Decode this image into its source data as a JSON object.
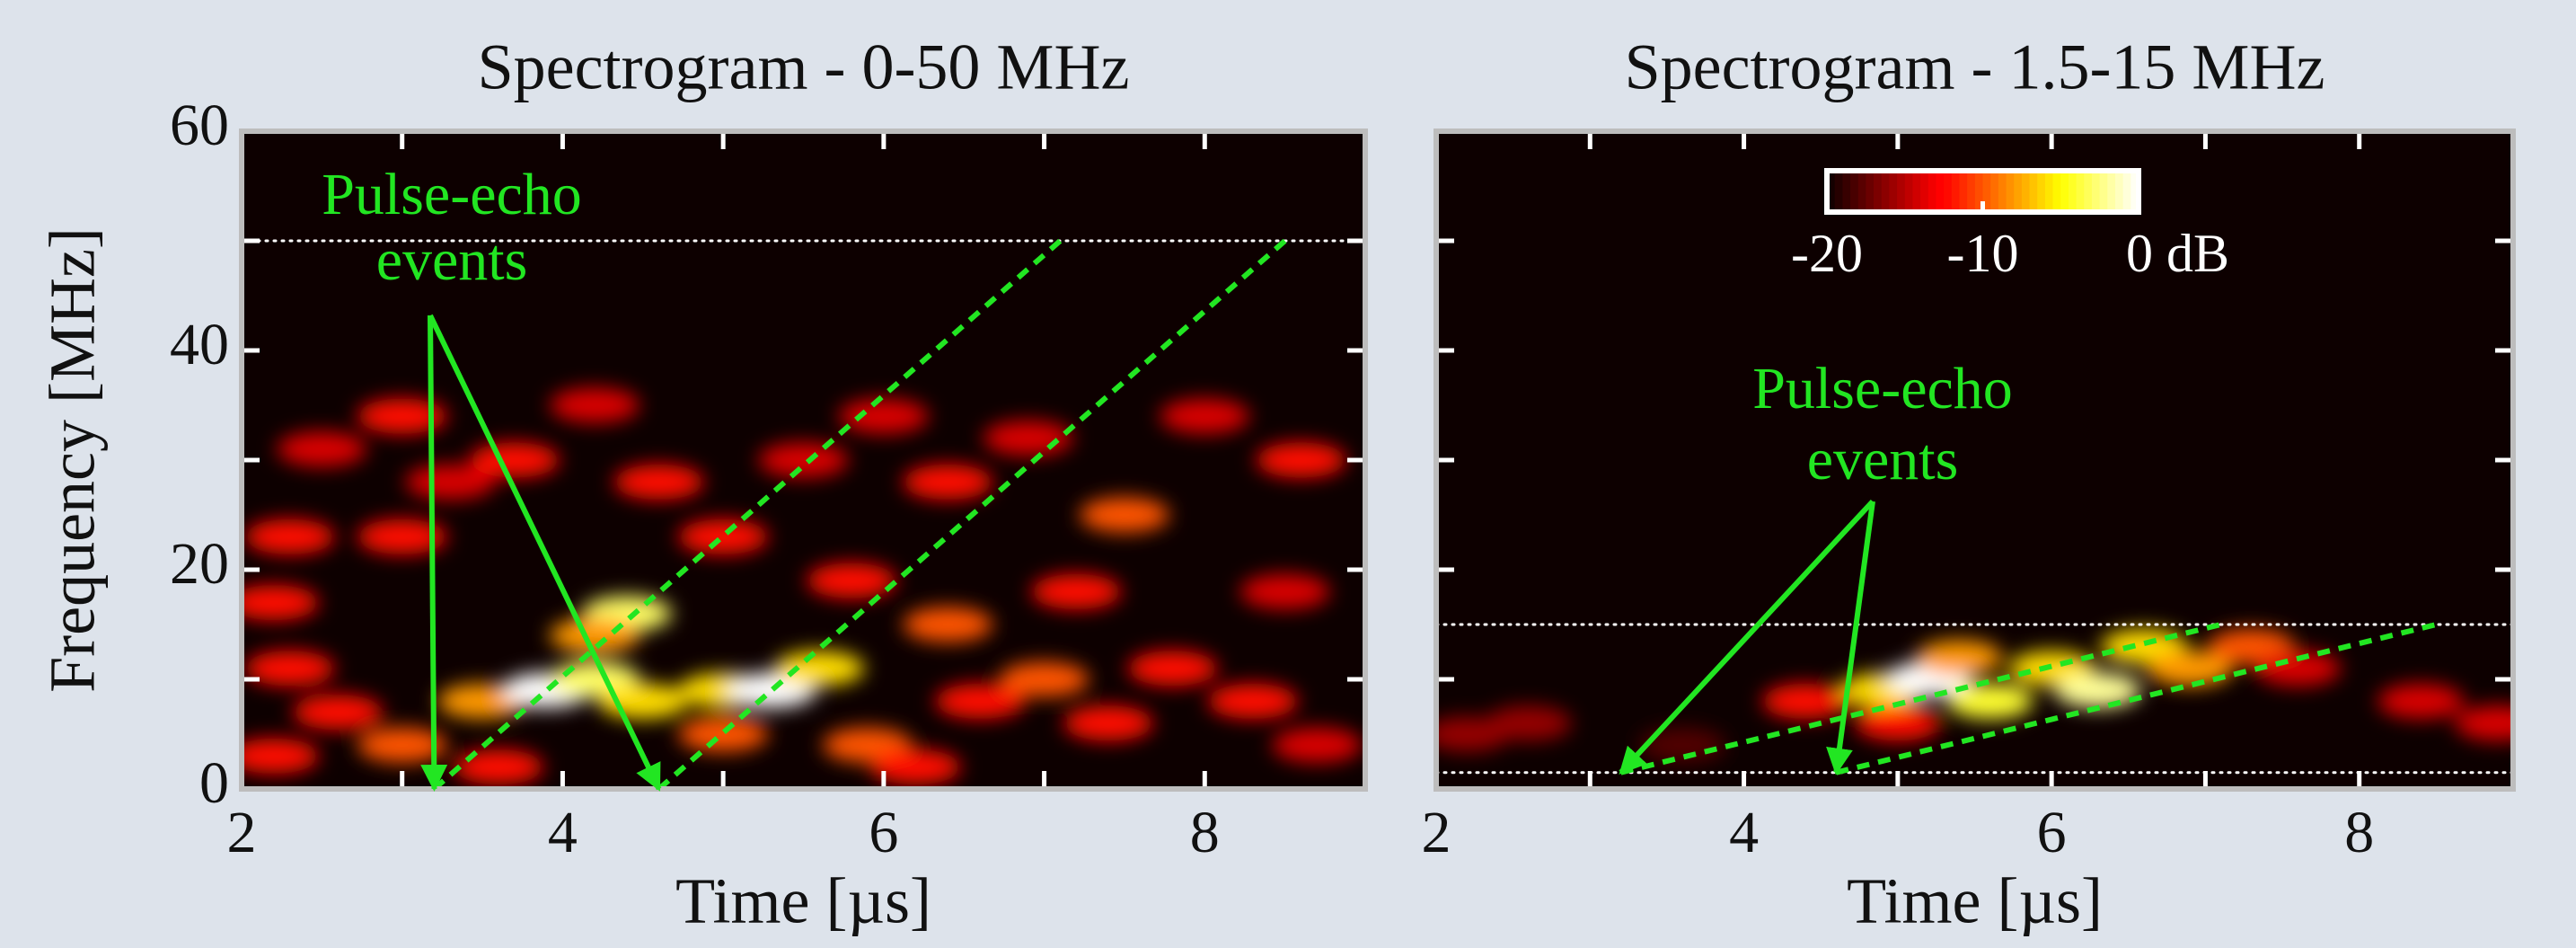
{
  "chart_data": [
    {
      "type": "heatmap",
      "title": "Spectrogram - 0-50 MHz",
      "xlabel": "Time [µs]",
      "ylabel": "Frequency [MHz]",
      "xlim": [
        2,
        9
      ],
      "ylim": [
        0,
        60
      ],
      "xticks": [
        2,
        4,
        6,
        8
      ],
      "xminor": [
        3,
        5,
        7,
        9
      ],
      "yticks": [
        0,
        20,
        40,
        60
      ],
      "yminor": [
        10,
        30,
        50
      ],
      "ytick_labels": true,
      "cmap": "hot",
      "vlim": [
        -20,
        0
      ],
      "x": [
        2.3,
        2.6,
        2.2,
        3.0,
        3.5,
        3.9,
        4.2,
        4.5,
        4.4,
        4.2,
        5.0,
        5.3,
        5.6,
        5.0,
        5.9,
        6.4,
        6.6,
        7.0,
        7.4,
        7.8,
        8.3,
        8.7,
        6.2,
        3.6,
        2.3,
        2.5,
        3.0,
        3.3,
        3.0,
        3.7,
        4.2,
        4.6,
        5.0,
        5.5,
        6.0,
        6.4,
        6.9,
        7.5,
        8.0,
        8.6,
        5.8,
        7.2,
        8.5,
        2.2
      ],
      "y": [
        11,
        7,
        3,
        4,
        8,
        9,
        10,
        8,
        16,
        14,
        9,
        9,
        11,
        5,
        4,
        15,
        8,
        10,
        6,
        11,
        8,
        4,
        2,
        2,
        23,
        31,
        34,
        28,
        23,
        30,
        35,
        28,
        23,
        30,
        34,
        28,
        32,
        25,
        34,
        30,
        19,
        18,
        18,
        17
      ],
      "values": [
        -12,
        -12,
        -12,
        -10,
        -8,
        0,
        -3,
        -6,
        -3,
        -8,
        -6,
        0,
        -6,
        -10,
        -10,
        -10,
        -12,
        -10,
        -12,
        -12,
        -12,
        -14,
        -12,
        -12,
        -12,
        -14,
        -12,
        -14,
        -12,
        -12,
        -14,
        -12,
        -12,
        -14,
        -14,
        -12,
        -14,
        -10,
        -14,
        -12,
        -12,
        -12,
        -14,
        -12
      ],
      "hlines": [
        0,
        50
      ],
      "hline_color": "#ffffff",
      "guides": [
        {
          "x": [
            3.2,
            7.1
          ],
          "y": [
            0,
            50
          ]
        },
        {
          "x": [
            4.6,
            8.5
          ],
          "y": [
            0,
            50
          ]
        }
      ],
      "guide_color": "#22e622",
      "annotation": {
        "text": [
          "Pulse-echo",
          "events"
        ],
        "points": [
          [
            3.2,
            0
          ],
          [
            4.6,
            0
          ]
        ]
      }
    },
    {
      "type": "heatmap",
      "title": "Spectrogram - 1.5-15 MHz",
      "xlabel": "Time [µs]",
      "xlim": [
        2,
        9
      ],
      "ylim": [
        0,
        60
      ],
      "xticks": [
        2,
        4,
        6,
        8
      ],
      "xminor": [
        3,
        5,
        7,
        9
      ],
      "yticks": [
        0,
        20,
        40,
        60
      ],
      "yminor": [
        10,
        30,
        50
      ],
      "ytick_labels": false,
      "cmap": "hot",
      "vlim": [
        -20,
        0
      ],
      "x": [
        2.2,
        2.6,
        4.4,
        4.9,
        5.2,
        5.6,
        5.4,
        6.0,
        6.3,
        6.6,
        6.9,
        7.3,
        5.0,
        7.6,
        8.4,
        8.9,
        3.6
      ],
      "y": [
        5,
        6,
        8,
        9,
        10,
        8,
        12,
        11,
        9,
        13,
        11,
        13,
        6,
        11,
        8,
        6,
        4
      ],
      "values": [
        -16,
        -16,
        -12,
        -6,
        0,
        -4,
        -8,
        -6,
        -2,
        -6,
        -8,
        -10,
        -12,
        -14,
        -14,
        -14,
        -18
      ],
      "hlines": [
        1.5,
        15
      ],
      "hline_color": "#ffffff",
      "guides": [
        {
          "x": [
            3.2,
            7.1
          ],
          "y": [
            1.5,
            15
          ]
        },
        {
          "x": [
            4.6,
            8.5
          ],
          "y": [
            1.5,
            15
          ]
        }
      ],
      "guide_color": "#22e622",
      "annotation": {
        "text": [
          "Pulse-echo",
          "events"
        ],
        "points": [
          [
            3.2,
            1.5
          ],
          [
            4.6,
            1.5
          ]
        ]
      },
      "colorbar": {
        "ticks": [
          -20,
          -10,
          {
            "value": 0,
            "label": "0 dB"
          }
        ]
      }
    }
  ]
}
